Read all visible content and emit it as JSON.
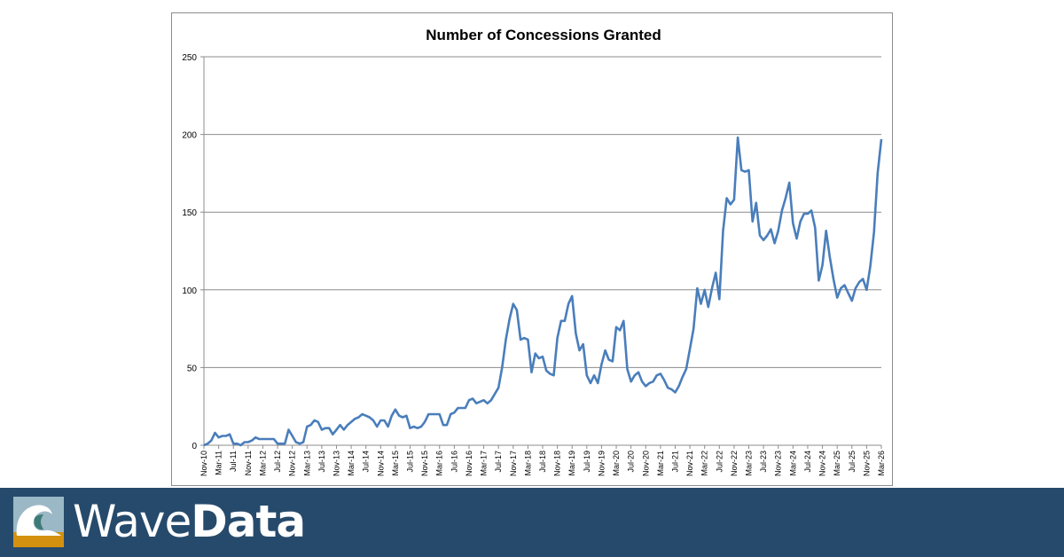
{
  "chart_data": {
    "type": "line",
    "title": "Number of Concessions Granted",
    "xlabel": "",
    "ylabel": "",
    "ylim": [
      0,
      250
    ],
    "yticks": [
      0,
      50,
      100,
      150,
      200,
      250
    ],
    "grid": true,
    "x_start": "Nov-10",
    "x_end": "Mar-26",
    "x_tick_labels": [
      "Nov-10",
      "Mar-11",
      "Jul-11",
      "Nov-11",
      "Mar-12",
      "Jul-12",
      "Nov-12",
      "Mar-13",
      "Jul-13",
      "Nov-13",
      "Mar-14",
      "Jul-14",
      "Nov-14",
      "Mar-15",
      "Jul-15",
      "Nov-15",
      "Mar-16",
      "Jul-16",
      "Nov-16",
      "Mar-17",
      "Jul-17",
      "Nov-17",
      "Mar-18",
      "Jul-18",
      "Nov-18",
      "Mar-19",
      "Jul-19",
      "Nov-19",
      "Mar-20",
      "Jul-20",
      "Nov-20",
      "Mar-21",
      "Jul-21",
      "Nov-21",
      "Mar-22",
      "Jul-22",
      "Nov-22",
      "Mar-23",
      "Jul-23",
      "Nov-23",
      "Mar-24",
      "Jul-24",
      "Nov-24",
      "Mar-25",
      "Jul-25",
      "Nov-25",
      "Mar-26"
    ],
    "line_color": "#4a7ebb",
    "values": [
      0,
      1,
      3,
      8,
      5,
      6,
      6,
      7,
      1,
      1,
      0,
      2,
      2,
      3,
      5,
      4,
      4,
      4,
      4,
      4,
      1,
      1,
      1,
      10,
      6,
      2,
      1,
      2,
      12,
      13,
      16,
      15,
      10,
      11,
      11,
      7,
      10,
      13,
      10,
      13,
      15,
      17,
      18,
      20,
      19,
      18,
      16,
      12,
      16,
      16,
      12,
      19,
      23,
      19,
      18,
      19,
      11,
      12,
      11,
      12,
      15,
      20,
      20,
      20,
      20,
      13,
      13,
      20,
      21,
      24,
      24,
      24,
      29,
      30,
      27,
      28,
      29,
      27,
      29,
      33,
      37,
      50,
      68,
      81,
      91,
      87,
      68,
      69,
      68,
      47,
      59,
      56,
      57,
      48,
      46,
      45,
      69,
      80,
      80,
      91,
      96,
      72,
      61,
      65,
      45,
      40,
      45,
      40,
      52,
      61,
      55,
      54,
      76,
      74,
      80,
      49,
      41,
      45,
      47,
      41,
      38,
      40,
      41,
      45,
      46,
      42,
      37,
      36,
      34,
      38,
      44,
      49,
      62,
      75,
      101,
      91,
      100,
      89,
      101,
      111,
      94,
      138,
      159,
      155,
      158,
      198,
      177,
      176,
      177,
      144,
      156,
      135,
      132,
      135,
      139,
      130,
      138,
      151,
      159,
      169,
      143,
      133,
      144,
      149,
      149,
      151,
      140,
      106,
      116,
      138,
      121,
      107,
      95,
      101,
      103,
      98,
      93,
      101,
      105,
      107,
      100,
      115,
      137,
      175,
      197
    ]
  },
  "banner": {
    "brand_light": "Wave",
    "brand_bold": "Data",
    "background_color": "#264a6b",
    "logo_icon": "wave-icon"
  }
}
